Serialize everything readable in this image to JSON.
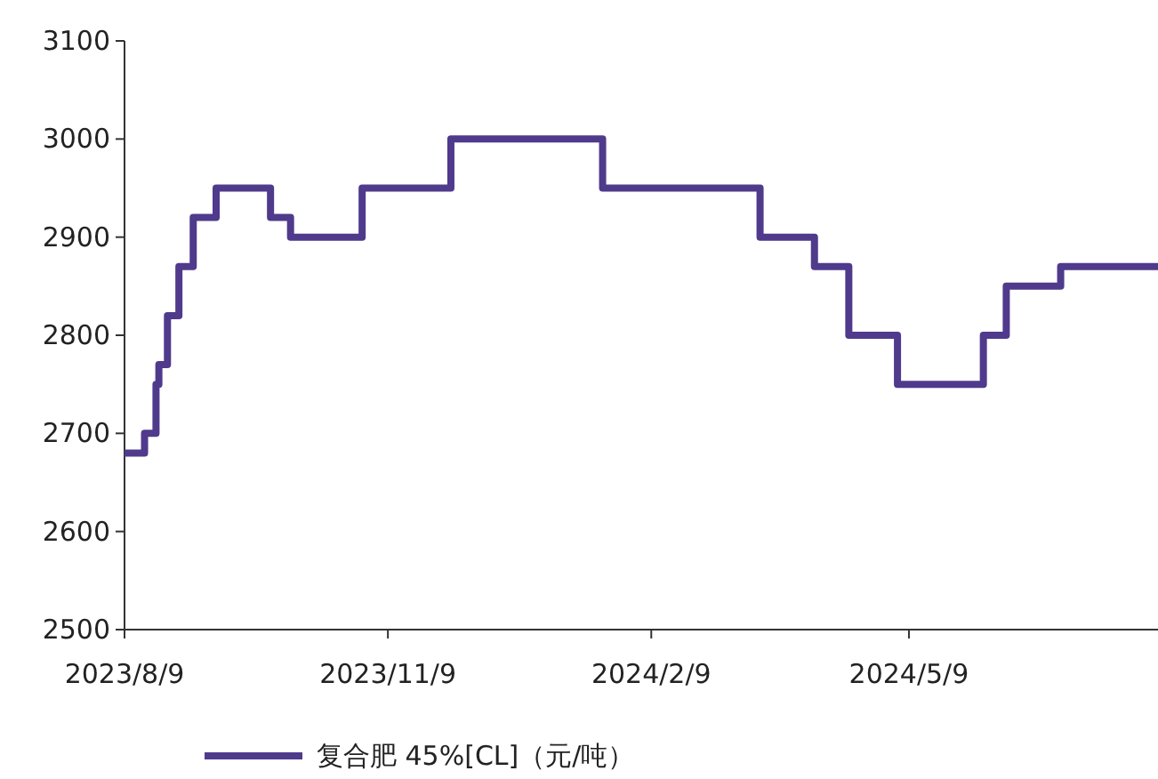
{
  "chart_data": {
    "type": "step",
    "x": [
      "2023-08-09",
      "2023-08-16",
      "2023-08-20",
      "2023-08-21",
      "2023-08-24",
      "2023-08-28",
      "2023-09-02",
      "2023-09-10",
      "2023-09-29",
      "2023-10-06",
      "2023-10-31",
      "2023-12-01",
      "2024-01-23",
      "2024-03-18",
      "2024-04-06",
      "2024-04-18",
      "2024-05-05",
      "2024-06-04",
      "2024-06-12",
      "2024-07-01",
      "2024-08-04"
    ],
    "series": [
      {
        "name": "复合肥 45%[CL]（元/吨）",
        "color": "#4f3a8c",
        "values": [
          2680,
          2700,
          2750,
          2770,
          2820,
          2870,
          2920,
          2950,
          2920,
          2900,
          2950,
          3000,
          2950,
          2900,
          2870,
          2800,
          2750,
          2800,
          2850,
          2870,
          2870
        ]
      }
    ],
    "xlim": [
      "2023-08-09",
      "2024-08-04"
    ],
    "xticks": [
      {
        "value": "2023-08-09",
        "label": "2023/8/9"
      },
      {
        "value": "2023-11-09",
        "label": "2023/11/9"
      },
      {
        "value": "2024-02-09",
        "label": "2024/2/9"
      },
      {
        "value": "2024-05-09",
        "label": "2024/5/9"
      }
    ],
    "ylim": [
      2500,
      3100
    ],
    "yticks": [
      2500,
      2600,
      2700,
      2800,
      2900,
      3000,
      3100
    ],
    "grid": false,
    "legend": "bottom",
    "marker": "none",
    "line_style": "solid"
  }
}
